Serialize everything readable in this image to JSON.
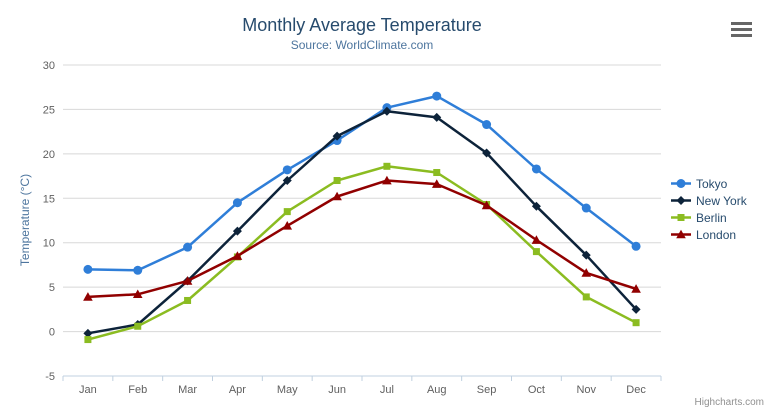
{
  "chart_data": {
    "type": "line",
    "title": "Monthly Average Temperature",
    "subtitle": "Source: WorldClimate.com",
    "xlabel": "",
    "ylabel": "Temperature (°C)",
    "categories": [
      "Jan",
      "Feb",
      "Mar",
      "Apr",
      "May",
      "Jun",
      "Jul",
      "Aug",
      "Sep",
      "Oct",
      "Nov",
      "Dec"
    ],
    "series": [
      {
        "name": "Tokyo",
        "color": "#2f7ed8",
        "marker": "circle",
        "values": [
          7.0,
          6.9,
          9.5,
          14.5,
          18.2,
          21.5,
          25.2,
          26.5,
          23.3,
          18.3,
          13.9,
          9.6
        ]
      },
      {
        "name": "New York",
        "color": "#0d233a",
        "marker": "diamond",
        "values": [
          -0.2,
          0.8,
          5.7,
          11.3,
          17.0,
          22.0,
          24.8,
          24.1,
          20.1,
          14.1,
          8.6,
          2.5
        ]
      },
      {
        "name": "Berlin",
        "color": "#8bbc21",
        "marker": "square",
        "values": [
          -0.9,
          0.6,
          3.5,
          8.4,
          13.5,
          17.0,
          18.6,
          17.9,
          14.3,
          9.0,
          3.9,
          1.0
        ]
      },
      {
        "name": "London",
        "color": "#910000",
        "marker": "triangle",
        "values": [
          3.9,
          4.2,
          5.7,
          8.5,
          11.9,
          15.2,
          17.0,
          16.6,
          14.2,
          10.3,
          6.6,
          4.8
        ]
      }
    ],
    "ylim": [
      -5,
      30
    ],
    "ytick_step": 5,
    "grid": true,
    "legend_position": "right",
    "colors": {
      "title": "#274b6d",
      "subtitle": "#4d759e",
      "ylabel": "#4d759e",
      "axis_labels": "#606060",
      "axis_line": "#c0d0e0",
      "gridline": "#d8d8d8",
      "legend_text": "#274b6d",
      "hamburger": "#666666",
      "credits": "#909090"
    }
  },
  "export_menu": {
    "icon": "hamburger-icon"
  },
  "credits": {
    "label": "Highcharts.com"
  }
}
